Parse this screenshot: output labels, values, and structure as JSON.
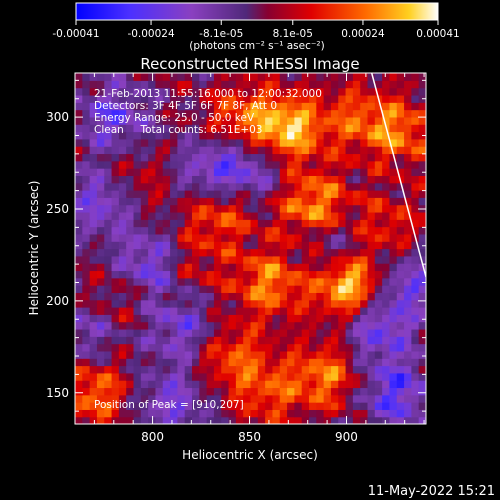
{
  "chart_data": {
    "type": "heatmap",
    "title": "Reconstructed RHESSI Image",
    "xlabel": "Heliocentric X (arcsec)",
    "ylabel": "Heliocentric Y (arcsec)",
    "xlim": [
      760,
      941
    ],
    "ylim": [
      133,
      324
    ],
    "x_ticks": [
      800,
      850,
      900
    ],
    "y_ticks": [
      150,
      200,
      250,
      300
    ],
    "colorbar": {
      "min": -0.00041,
      "max": 0.00041,
      "tick_values": [
        -0.00041,
        -0.00024,
        -8.1e-05,
        8.1e-05,
        0.00024,
        0.00041
      ],
      "tick_labels": [
        "-0.00041",
        "-0.00024",
        "-8.1e-05",
        "8.1e-05",
        "0.00024",
        "0.00041"
      ],
      "unit_label": "(photons cm⁻² s⁻¹ asec⁻²)"
    },
    "annotations": [
      "21-Feb-2013 11:55:16.000 to 12:00:32.000",
      "Detectors: 3F 4F 5F 6F 7F 8F, Att 0",
      "Energy Range: 25.0 - 50.0 keV",
      "Clean     Total counts: 6.51E+03"
    ],
    "peak_label": "Position of Peak = [910,207]",
    "peak": [
      910,
      207
    ],
    "hot_spots": [
      {
        "x": 902,
        "y": 209,
        "value": 0.00041
      },
      {
        "x": 870,
        "y": 294,
        "value": 0.00034
      },
      {
        "x": 883,
        "y": 252,
        "value": 0.0003
      },
      {
        "x": 860,
        "y": 210,
        "value": 0.00026
      },
      {
        "x": 835,
        "y": 250,
        "value": 0.00024
      },
      {
        "x": 890,
        "y": 160,
        "value": 0.00025
      },
      {
        "x": 840,
        "y": 170,
        "value": 0.00021
      },
      {
        "x": 845,
        "y": 300,
        "value": 0.0002
      },
      {
        "x": 928,
        "y": 292,
        "value": 0.00023
      },
      {
        "x": 905,
        "y": 300,
        "value": 0.00018
      },
      {
        "x": 770,
        "y": 150,
        "value": 0.00024
      },
      {
        "x": 790,
        "y": 265,
        "value": 0.00014
      },
      {
        "x": 780,
        "y": 200,
        "value": 0.00012
      },
      {
        "x": 818,
        "y": 220,
        "value": 0.00015
      },
      {
        "x": 860,
        "y": 150,
        "value": 0.00018
      },
      {
        "x": 920,
        "y": 240,
        "value": 0.00017
      }
    ],
    "cold_spots": [
      {
        "x": 800,
        "y": 220,
        "value": -0.00026
      },
      {
        "x": 775,
        "y": 255,
        "value": -0.00024
      },
      {
        "x": 830,
        "y": 270,
        "value": -0.00022
      },
      {
        "x": 850,
        "y": 270,
        "value": -0.0002
      },
      {
        "x": 915,
        "y": 185,
        "value": -0.00024
      },
      {
        "x": 925,
        "y": 150,
        "value": -0.00026
      },
      {
        "x": 810,
        "y": 145,
        "value": -0.0002
      },
      {
        "x": 780,
        "y": 300,
        "value": -0.00022
      },
      {
        "x": 895,
        "y": 230,
        "value": -0.00018
      },
      {
        "x": 930,
        "y": 210,
        "value": -0.00022
      },
      {
        "x": 765,
        "y": 185,
        "value": -0.00018
      },
      {
        "x": 815,
        "y": 185,
        "value": -0.0002
      }
    ],
    "limb_line": [
      [
        913,
        324
      ],
      [
        941,
        213
      ]
    ]
  },
  "footer_timestamp": "11-May-2022 15:21"
}
